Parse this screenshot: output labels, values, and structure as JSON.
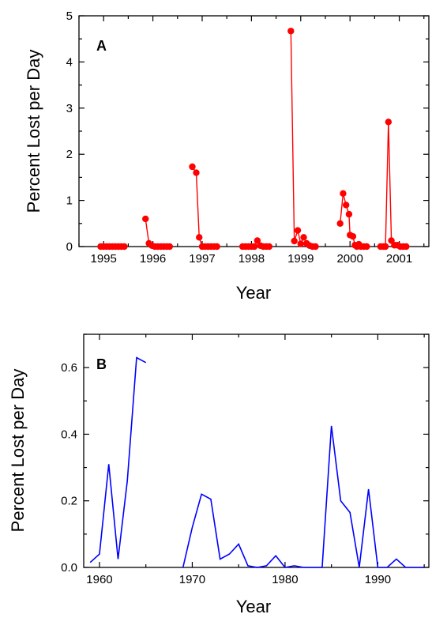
{
  "chart_data": [
    {
      "type": "scatter",
      "panel_label": "A",
      "xlabel": "Year",
      "ylabel": "Percent Lost per Day",
      "xlim": [
        1994.5,
        2001.6
      ],
      "ylim": [
        0,
        5
      ],
      "x_ticks": [
        1995,
        1996,
        1997,
        1998,
        1999,
        2000,
        2001
      ],
      "y_ticks": [
        0,
        1,
        2,
        3,
        4,
        5
      ],
      "grid": false,
      "color": "#ff0000",
      "series": [
        {
          "values": [
            [
              1994.94,
              0
            ],
            [
              1995.0,
              0
            ],
            [
              1995.06,
              0
            ],
            [
              1995.12,
              0
            ],
            [
              1995.18,
              0
            ],
            [
              1995.24,
              0
            ],
            [
              1995.3,
              0
            ],
            [
              1995.36,
              0
            ],
            [
              1995.42,
              0
            ]
          ]
        },
        {
          "values": [
            [
              1995.85,
              0.6
            ],
            [
              1995.92,
              0.07
            ],
            [
              1995.98,
              0.02
            ],
            [
              1996.04,
              0
            ],
            [
              1996.1,
              0
            ],
            [
              1996.16,
              0
            ],
            [
              1996.22,
              0
            ],
            [
              1996.28,
              0
            ],
            [
              1996.34,
              0
            ]
          ]
        },
        {
          "values": [
            [
              1996.8,
              1.73
            ],
            [
              1996.88,
              1.6
            ],
            [
              1996.94,
              0.2
            ],
            [
              1997.0,
              0
            ],
            [
              1997.06,
              0
            ],
            [
              1997.12,
              0
            ],
            [
              1997.18,
              0
            ],
            [
              1997.24,
              0
            ],
            [
              1997.3,
              0
            ]
          ]
        },
        {
          "values": [
            [
              1997.82,
              0
            ],
            [
              1997.88,
              0
            ],
            [
              1997.94,
              0
            ],
            [
              1998.0,
              0
            ],
            [
              1998.06,
              0
            ],
            [
              1998.12,
              0.13
            ],
            [
              1998.18,
              0.02
            ],
            [
              1998.24,
              0
            ],
            [
              1998.3,
              0
            ],
            [
              1998.36,
              0
            ]
          ]
        },
        {
          "values": [
            [
              1998.8,
              4.67
            ],
            [
              1998.87,
              0.12
            ],
            [
              1998.94,
              0.35
            ],
            [
              1999.0,
              0.06
            ],
            [
              1999.06,
              0.2
            ],
            [
              1999.12,
              0.07
            ],
            [
              1999.18,
              0.02
            ],
            [
              1999.24,
              0
            ],
            [
              1999.3,
              0
            ]
          ]
        },
        {
          "values": [
            [
              1999.8,
              0.5
            ],
            [
              1999.86,
              1.15
            ],
            [
              1999.92,
              0.9
            ],
            [
              1999.98,
              0.7
            ],
            [
              2000.0,
              0.25
            ],
            [
              2000.06,
              0.22
            ],
            [
              2000.1,
              0.03
            ],
            [
              2000.14,
              0
            ],
            [
              2000.18,
              0.05
            ],
            [
              2000.22,
              0
            ],
            [
              2000.28,
              0
            ],
            [
              2000.34,
              0
            ]
          ]
        },
        {
          "values": [
            [
              2000.62,
              0
            ],
            [
              2000.68,
              0
            ],
            [
              2000.72,
              0
            ],
            [
              2000.78,
              2.7
            ],
            [
              2000.84,
              0.13
            ],
            [
              2000.9,
              0.03
            ],
            [
              2000.96,
              0.03
            ],
            [
              2001.02,
              0
            ],
            [
              2001.08,
              0
            ],
            [
              2001.14,
              0
            ]
          ]
        }
      ]
    },
    {
      "type": "line",
      "panel_label": "B",
      "xlabel": "Year",
      "ylabel": "Percent Lost per Day",
      "xlim": [
        1958.3,
        1995.5
      ],
      "ylim": [
        0,
        0.7
      ],
      "x_ticks": [
        1960,
        1970,
        1980,
        1990
      ],
      "y_ticks": [
        0.0,
        0.2,
        0.4,
        0.6
      ],
      "y_tick_labels": [
        "0.0",
        "0.2",
        "0.4",
        "0.6"
      ],
      "grid": false,
      "color": "#0000ff",
      "series": [
        {
          "values": [
            [
              1959,
              0.015
            ],
            [
              1960,
              0.04
            ],
            [
              1961,
              0.31
            ],
            [
              1962,
              0.025
            ],
            [
              1963,
              0.26
            ],
            [
              1964,
              0.63
            ],
            [
              1965,
              0.615
            ]
          ]
        },
        {
          "values": [
            [
              1969,
              0.0
            ],
            [
              1970,
              0.12
            ],
            [
              1971,
              0.22
            ],
            [
              1972,
              0.205
            ],
            [
              1973,
              0.025
            ],
            [
              1974,
              0.04
            ],
            [
              1975,
              0.07
            ],
            [
              1976,
              0.005
            ],
            [
              1977,
              0.0
            ],
            [
              1978,
              0.005
            ],
            [
              1979,
              0.035
            ],
            [
              1980,
              0.0
            ],
            [
              1981,
              0.005
            ],
            [
              1982,
              0.0
            ],
            [
              1983,
              0.0
            ],
            [
              1984,
              0.0
            ],
            [
              1985,
              0.425
            ],
            [
              1986,
              0.2
            ],
            [
              1987,
              0.165
            ],
            [
              1988,
              0.0
            ],
            [
              1989,
              0.235
            ],
            [
              1990,
              0.0
            ],
            [
              1991,
              0.0
            ],
            [
              1992,
              0.025
            ],
            [
              1993,
              0.0
            ],
            [
              1994,
              0.0
            ],
            [
              1995,
              0.0
            ]
          ]
        }
      ]
    }
  ]
}
